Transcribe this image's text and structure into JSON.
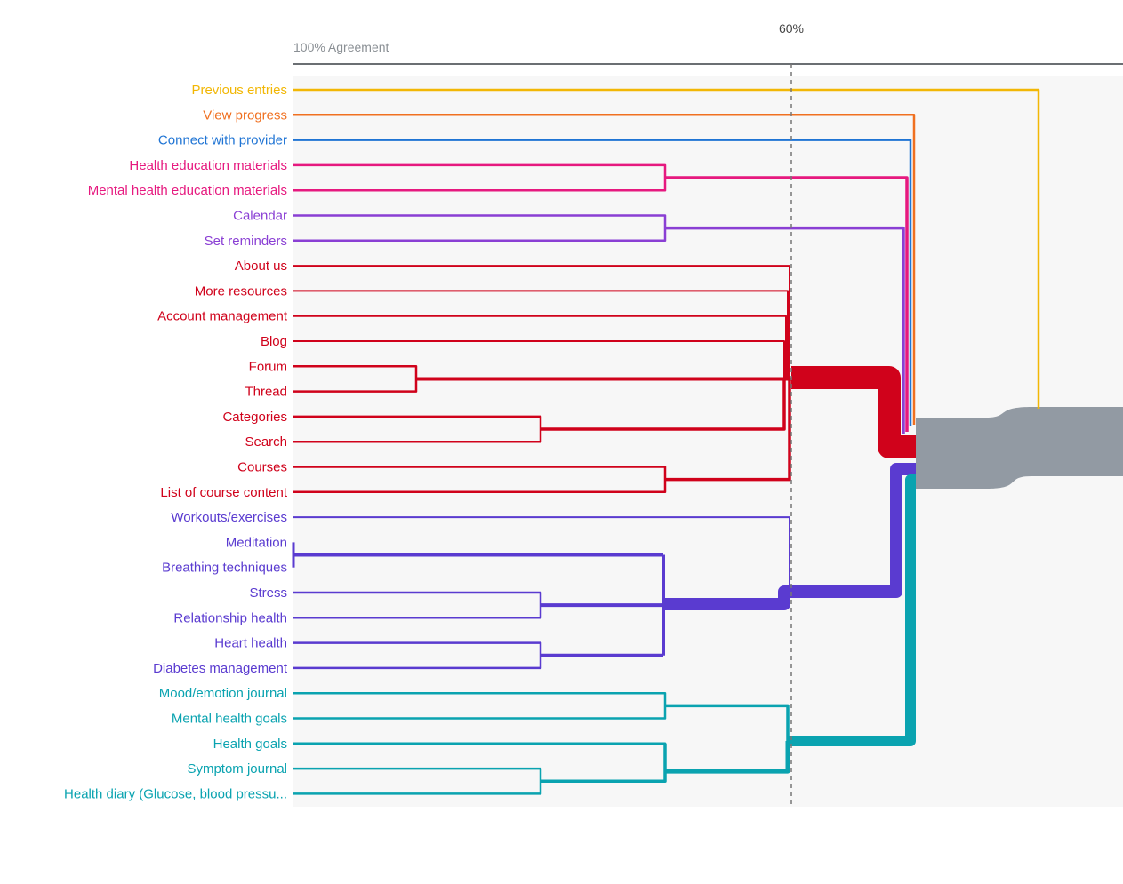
{
  "axis": {
    "left_label": "100% Agreement",
    "threshold_label": "60%"
  },
  "colors": {
    "yellow": "#f2b705",
    "orange": "#f07020",
    "blue": "#1f74d4",
    "pink": "#e6197f",
    "violet": "#8a3fd4",
    "red": "#d0021b",
    "purple": "#5a3bd0",
    "teal": "#0aa3b0",
    "gray": "#929aa3",
    "panel": "#f7f7f7",
    "axis_line": "#6b6f73",
    "label_gray": "#8a8f94",
    "dash": "#777777"
  },
  "leaves": [
    {
      "label": "Previous entries",
      "group": "yellow"
    },
    {
      "label": "View progress",
      "group": "orange"
    },
    {
      "label": "Connect with provider",
      "group": "blue"
    },
    {
      "label": "Health education materials",
      "group": "pink"
    },
    {
      "label": "Mental health education materials",
      "group": "pink"
    },
    {
      "label": "Calendar",
      "group": "violet"
    },
    {
      "label": "Set reminders",
      "group": "violet"
    },
    {
      "label": "About us",
      "group": "red"
    },
    {
      "label": "More resources",
      "group": "red"
    },
    {
      "label": "Account management",
      "group": "red"
    },
    {
      "label": "Blog",
      "group": "red"
    },
    {
      "label": "Forum",
      "group": "red"
    },
    {
      "label": "Thread",
      "group": "red"
    },
    {
      "label": "Categories",
      "group": "red"
    },
    {
      "label": "Search",
      "group": "red"
    },
    {
      "label": "Courses",
      "group": "red"
    },
    {
      "label": "List of course content",
      "group": "red"
    },
    {
      "label": "Workouts/exercises",
      "group": "purple"
    },
    {
      "label": "Meditation",
      "group": "purple"
    },
    {
      "label": "Breathing techniques",
      "group": "purple"
    },
    {
      "label": "Stress",
      "group": "purple"
    },
    {
      "label": "Relationship health",
      "group": "purple"
    },
    {
      "label": "Heart health",
      "group": "purple"
    },
    {
      "label": "Diabetes management",
      "group": "purple"
    },
    {
      "label": "Mood/emotion journal",
      "group": "teal"
    },
    {
      "label": "Mental health goals",
      "group": "teal"
    },
    {
      "label": "Health goals",
      "group": "teal"
    },
    {
      "label": "Symptom journal",
      "group": "teal"
    },
    {
      "label": "Health diary (Glucose, blood pressu...",
      "group": "teal"
    }
  ]
}
